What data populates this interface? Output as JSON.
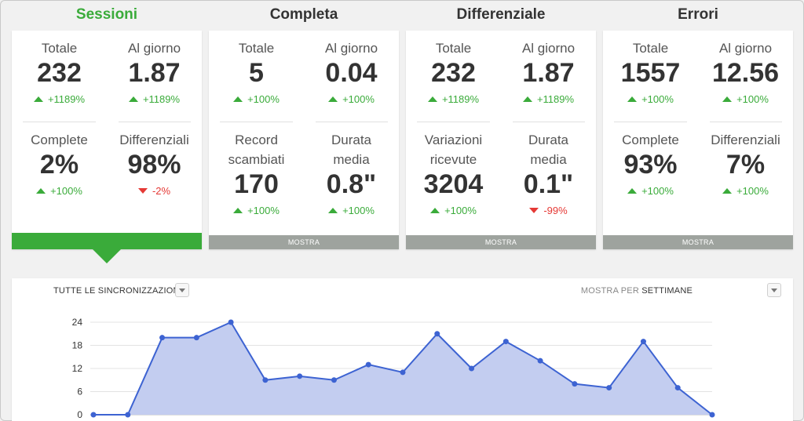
{
  "columns": [
    {
      "title": "Sessioni",
      "active": true,
      "metrics": [
        {
          "label": "Totale",
          "value": "232",
          "change": "+1189%",
          "dir": "up"
        },
        {
          "label": "Al giorno",
          "value": "1.87",
          "change": "+1189%",
          "dir": "up"
        },
        {
          "label": "Complete",
          "value": "2%",
          "change": "+100%",
          "dir": "up"
        },
        {
          "label": "Differenziali",
          "value": "98%",
          "change": "-2%",
          "dir": "down"
        }
      ],
      "button": ""
    },
    {
      "title": "Completa",
      "active": false,
      "metrics": [
        {
          "label": "Totale",
          "value": "5",
          "change": "+100%",
          "dir": "up"
        },
        {
          "label": "Al giorno",
          "value": "0.04",
          "change": "+100%",
          "dir": "up"
        },
        {
          "label": "Record scambiati",
          "value": "170",
          "change": "+100%",
          "dir": "up"
        },
        {
          "label": "Durata media",
          "value": "0.8\"",
          "change": "+100%",
          "dir": "up"
        }
      ],
      "button": "MOSTRA"
    },
    {
      "title": "Differenziale",
      "active": false,
      "metrics": [
        {
          "label": "Totale",
          "value": "232",
          "change": "+1189%",
          "dir": "up"
        },
        {
          "label": "Al giorno",
          "value": "1.87",
          "change": "+1189%",
          "dir": "up"
        },
        {
          "label": "Variazioni ricevute",
          "value": "3204",
          "change": "+100%",
          "dir": "up"
        },
        {
          "label": "Durata media",
          "value": "0.1\"",
          "change": "-99%",
          "dir": "down"
        }
      ],
      "button": "MOSTRA"
    },
    {
      "title": "Errori",
      "active": false,
      "metrics": [
        {
          "label": "Totale",
          "value": "1557",
          "change": "+100%",
          "dir": "up"
        },
        {
          "label": "Al giorno",
          "value": "12.56",
          "change": "+100%",
          "dir": "up"
        },
        {
          "label": "Complete",
          "value": "93%",
          "change": "+100%",
          "dir": "up"
        },
        {
          "label": "Differenziali",
          "value": "7%",
          "change": "+100%",
          "dir": "up"
        }
      ],
      "button": "MOSTRA"
    }
  ],
  "chart_panel": {
    "title": "TUTTE LE SINCRONIZZAZIONI",
    "show_by_prefix": "MOSTRA PER",
    "show_by_value": "SETTIMANE"
  },
  "chart_data": {
    "type": "area",
    "title": "",
    "xlabel": "",
    "ylabel": "",
    "ylim": [
      0,
      24
    ],
    "yticks": [
      0,
      6,
      12,
      18,
      24
    ],
    "grid": true,
    "values": [
      0,
      0,
      20,
      20,
      24,
      9,
      10,
      9,
      13,
      11,
      21,
      12,
      19,
      14,
      8,
      7,
      19,
      7,
      0
    ],
    "line_color": "#3d63d2",
    "fill_color": "#c3cdf0"
  },
  "colors": {
    "accent_green": "#3aab3a",
    "negative_red": "#e53935",
    "button_gray": "#9ea39e"
  }
}
